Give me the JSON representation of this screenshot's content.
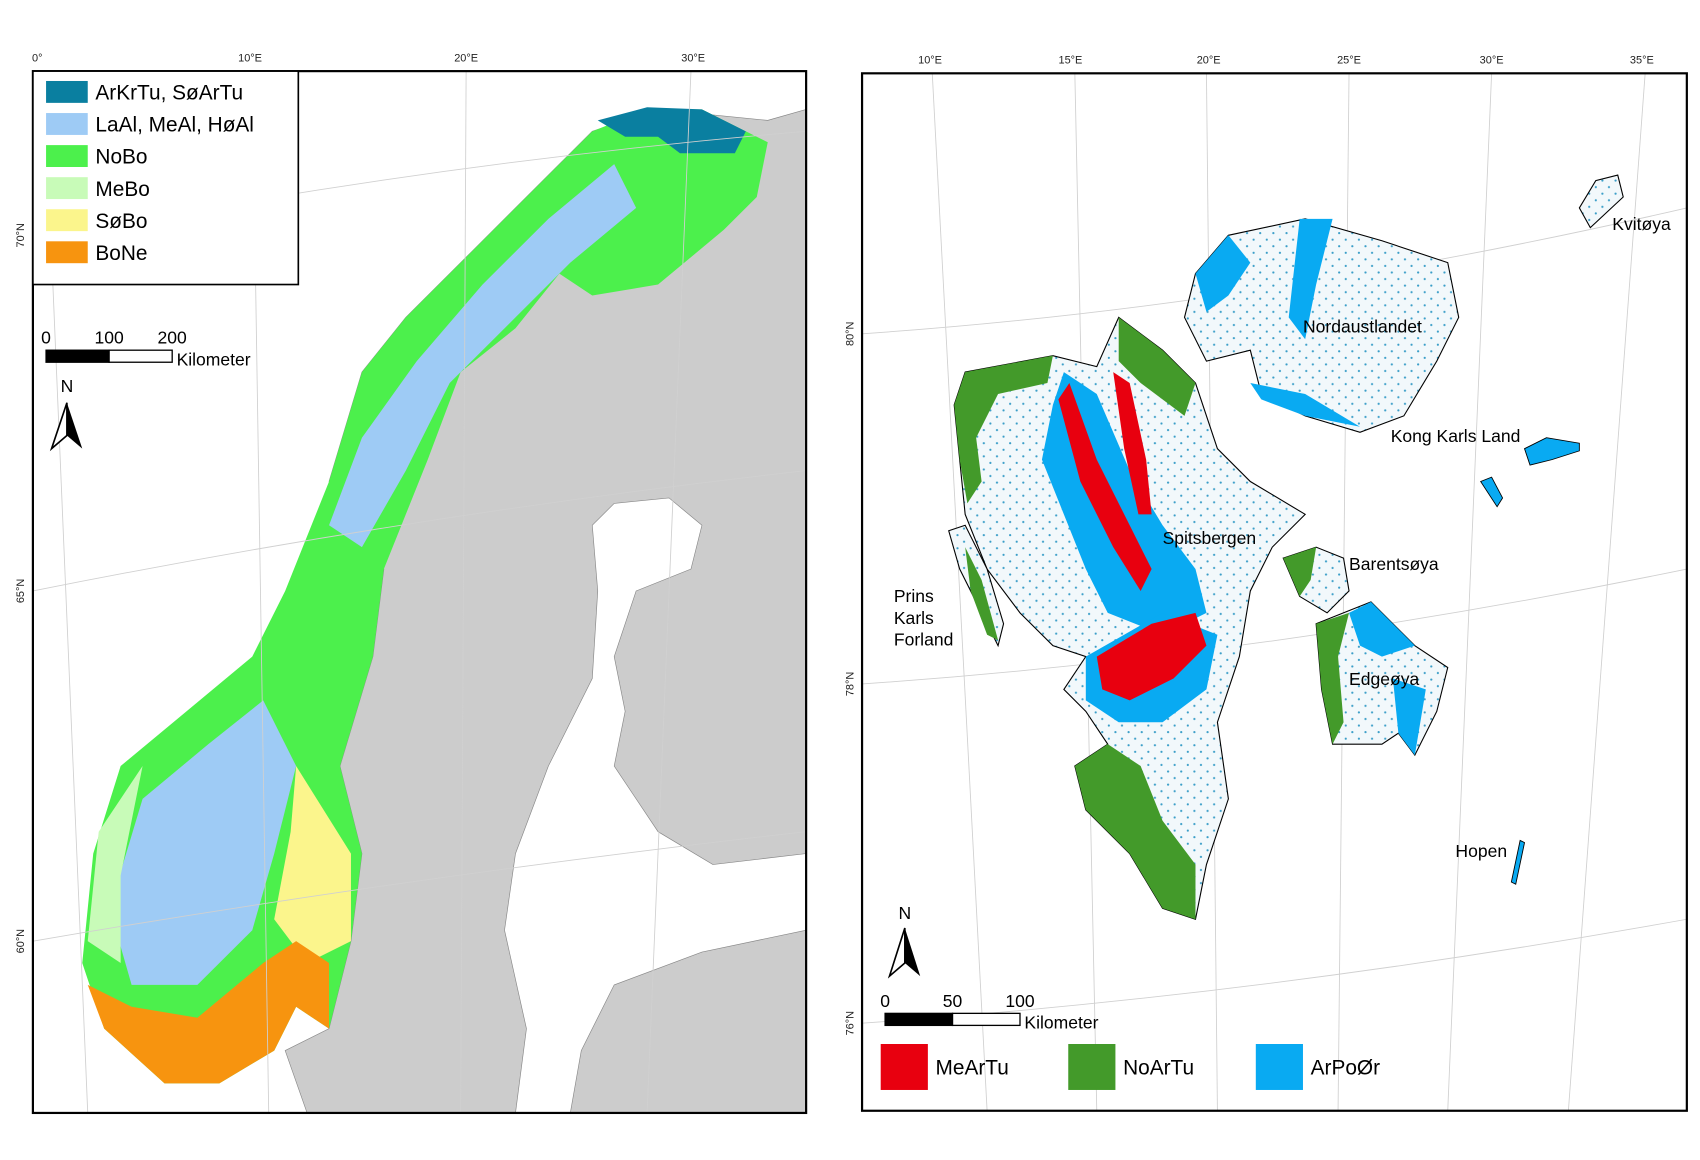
{
  "norway_map": {
    "longitude_labels": [
      "0°",
      "10°E",
      "20°E",
      "30°E"
    ],
    "latitude_labels": [
      "70°N",
      "65°N",
      "60°N"
    ],
    "legend": [
      {
        "label": "ArKrTu, SøArTu",
        "color": "#0a7fa0"
      },
      {
        "label": "LaAl, MeAl, HøAl",
        "color": "#9ecbf5"
      },
      {
        "label": "NoBo",
        "color": "#4cf04c"
      },
      {
        "label": "MeBo",
        "color": "#c8fbb8"
      },
      {
        "label": "SøBo",
        "color": "#fbf58c"
      },
      {
        "label": "BoNe",
        "color": "#f7940f"
      }
    ],
    "scale_bar": {
      "ticks": [
        0,
        100,
        200
      ],
      "unit": "Kilometer"
    },
    "north_arrow": "N"
  },
  "svalbard_map": {
    "longitude_labels": [
      "10°E",
      "15°E",
      "20°E",
      "25°E",
      "30°E",
      "35°E"
    ],
    "latitude_labels": [
      "80°N",
      "78°N",
      "76°N"
    ],
    "place_names": [
      "Nordaustlandet",
      "Kvitøya",
      "Kong Karls Land",
      "Spitsbergen",
      "Barentsøya",
      [
        "Prins",
        "Karls",
        "Forland"
      ],
      "Edgeøya",
      "Hopen"
    ],
    "legend": [
      {
        "label": "MeArTu",
        "color": "#e8000f"
      },
      {
        "label": "NoArTu",
        "color": "#439a2a"
      },
      {
        "label": "ArPoØr",
        "color": "#09aaf2"
      }
    ],
    "scale_bar": {
      "ticks": [
        0,
        50,
        100
      ],
      "unit": "Kilometer"
    },
    "north_arrow": "N"
  }
}
